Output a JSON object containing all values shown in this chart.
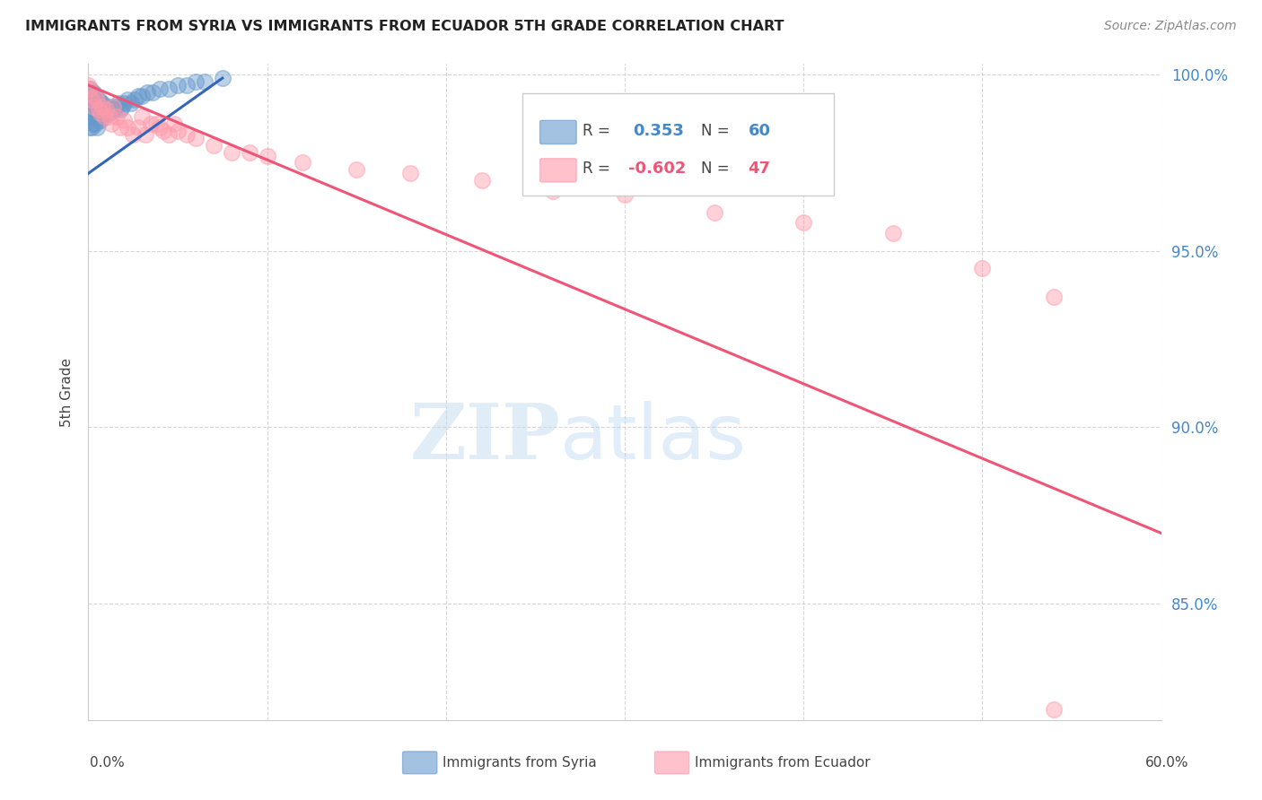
{
  "title": "IMMIGRANTS FROM SYRIA VS IMMIGRANTS FROM ECUADOR 5TH GRADE CORRELATION CHART",
  "source": "Source: ZipAtlas.com",
  "ylabel": "5th Grade",
  "xlim": [
    0.0,
    0.6
  ],
  "ylim": [
    0.817,
    1.003
  ],
  "y_ticks": [
    0.85,
    0.9,
    0.95,
    1.0
  ],
  "y_tick_labels": [
    "85.0%",
    "90.0%",
    "95.0%",
    "100.0%"
  ],
  "legend_blue_r": "0.353",
  "legend_blue_n": "60",
  "legend_pink_r": "-0.602",
  "legend_pink_n": "47",
  "blue_color": "#6699CC",
  "pink_color": "#FF99AA",
  "blue_line_color": "#3366BB",
  "pink_line_color": "#EE5577",
  "syria_x": [
    0.0,
    0.0,
    0.0,
    0.001,
    0.001,
    0.001,
    0.001,
    0.001,
    0.002,
    0.002,
    0.002,
    0.002,
    0.002,
    0.003,
    0.003,
    0.003,
    0.003,
    0.004,
    0.004,
    0.004,
    0.004,
    0.005,
    0.005,
    0.005,
    0.005,
    0.006,
    0.006,
    0.006,
    0.007,
    0.007,
    0.007,
    0.008,
    0.008,
    0.009,
    0.009,
    0.01,
    0.011,
    0.012,
    0.013,
    0.014,
    0.015,
    0.016,
    0.017,
    0.018,
    0.019,
    0.02,
    0.022,
    0.024,
    0.026,
    0.028,
    0.03,
    0.033,
    0.036,
    0.04,
    0.045,
    0.05,
    0.055,
    0.06,
    0.065,
    0.075
  ],
  "syria_y": [
    0.993,
    0.99,
    0.988,
    0.996,
    0.993,
    0.99,
    0.988,
    0.985,
    0.995,
    0.993,
    0.99,
    0.988,
    0.985,
    0.995,
    0.992,
    0.989,
    0.986,
    0.994,
    0.992,
    0.989,
    0.986,
    0.993,
    0.99,
    0.988,
    0.985,
    0.993,
    0.99,
    0.988,
    0.992,
    0.99,
    0.987,
    0.992,
    0.989,
    0.991,
    0.988,
    0.991,
    0.99,
    0.989,
    0.991,
    0.99,
    0.99,
    0.991,
    0.992,
    0.99,
    0.991,
    0.992,
    0.993,
    0.992,
    0.993,
    0.994,
    0.994,
    0.995,
    0.995,
    0.996,
    0.996,
    0.997,
    0.997,
    0.998,
    0.998,
    0.999
  ],
  "ecuador_x": [
    0.0,
    0.001,
    0.002,
    0.003,
    0.004,
    0.005,
    0.006,
    0.007,
    0.008,
    0.009,
    0.01,
    0.012,
    0.013,
    0.014,
    0.016,
    0.018,
    0.02,
    0.022,
    0.025,
    0.028,
    0.03,
    0.032,
    0.035,
    0.038,
    0.04,
    0.042,
    0.045,
    0.048,
    0.05,
    0.055,
    0.06,
    0.07,
    0.08,
    0.09,
    0.1,
    0.12,
    0.15,
    0.18,
    0.22,
    0.26,
    0.3,
    0.35,
    0.4,
    0.45,
    0.5,
    0.54,
    0.54
  ],
  "ecuador_y": [
    0.997,
    0.996,
    0.993,
    0.991,
    0.994,
    0.993,
    0.99,
    0.989,
    0.991,
    0.988,
    0.99,
    0.988,
    0.986,
    0.991,
    0.988,
    0.985,
    0.987,
    0.985,
    0.983,
    0.985,
    0.988,
    0.983,
    0.986,
    0.986,
    0.985,
    0.984,
    0.983,
    0.986,
    0.984,
    0.983,
    0.982,
    0.98,
    0.978,
    0.978,
    0.977,
    0.975,
    0.973,
    0.972,
    0.97,
    0.967,
    0.966,
    0.961,
    0.958,
    0.955,
    0.945,
    0.937,
    0.82
  ],
  "blue_line_x": [
    0.0,
    0.075
  ],
  "blue_line_y": [
    0.972,
    0.999
  ],
  "pink_line_x": [
    0.0,
    0.6
  ],
  "pink_line_y": [
    0.997,
    0.87
  ]
}
